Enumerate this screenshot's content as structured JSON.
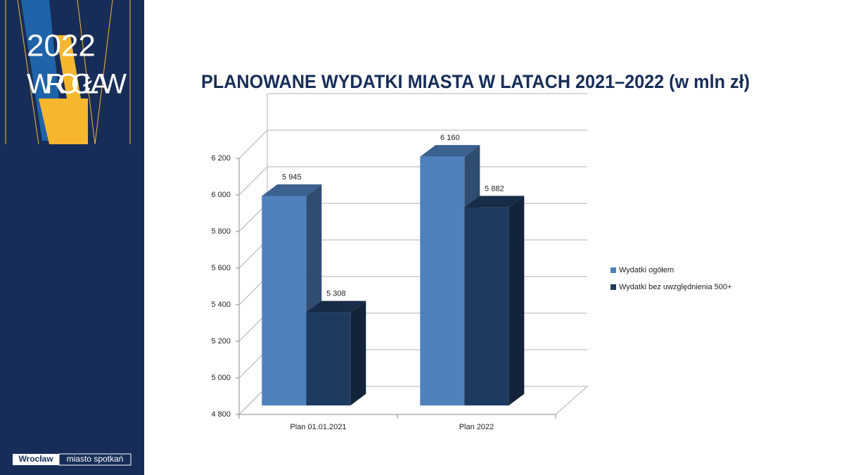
{
  "sidebar": {
    "logo_year": "2022",
    "logo_city": "WROCŁAW",
    "footer_left": "Wrocław",
    "footer_right": "miasto spotkań"
  },
  "chart_data": {
    "type": "bar3d",
    "title": "PLANOWANE WYDATKI MIASTA W LATACH 2021–2022 (w mln zł)",
    "categories": [
      "Plan 01.01.2021",
      "Plan 2022"
    ],
    "series": [
      {
        "name": "Wydatki ogółem",
        "color": "#4f81bd",
        "values": [
          5945,
          6160
        ],
        "value_labels": [
          "5 945",
          "6 160"
        ]
      },
      {
        "name": "Wydatki bez uwzględnienia 500+",
        "color": "#1f3a60",
        "values": [
          5308,
          5882
        ],
        "value_labels": [
          "5 308",
          "5 882"
        ]
      }
    ],
    "ylim": [
      4800,
      6400
    ],
    "yticks": [
      {
        "value": 4800,
        "label": "4 800"
      },
      {
        "value": 5000,
        "label": "5 000"
      },
      {
        "value": 5200,
        "label": "5 200"
      },
      {
        "value": 5400,
        "label": "5 400"
      },
      {
        "value": 5600,
        "label": "5 600"
      },
      {
        "value": 5800,
        "label": "5 800"
      },
      {
        "value": 6000,
        "label": "6 000"
      },
      {
        "value": 6200,
        "label": "6 200"
      }
    ],
    "grid": true,
    "legend": "right"
  }
}
